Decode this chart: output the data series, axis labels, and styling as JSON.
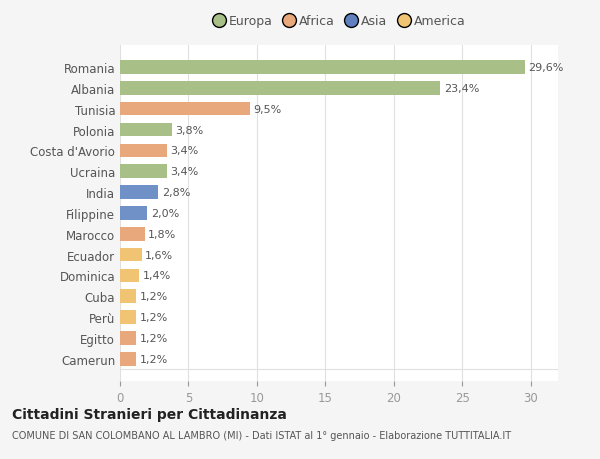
{
  "categories": [
    "Camerun",
    "Egitto",
    "Perù",
    "Cuba",
    "Dominica",
    "Ecuador",
    "Marocco",
    "Filippine",
    "India",
    "Ucraina",
    "Costa d'Avorio",
    "Polonia",
    "Tunisia",
    "Albania",
    "Romania"
  ],
  "values": [
    1.2,
    1.2,
    1.2,
    1.2,
    1.4,
    1.6,
    1.8,
    2.0,
    2.8,
    3.4,
    3.4,
    3.8,
    9.5,
    23.4,
    29.6
  ],
  "labels": [
    "1,2%",
    "1,2%",
    "1,2%",
    "1,2%",
    "1,4%",
    "1,6%",
    "1,8%",
    "2,0%",
    "2,8%",
    "3,4%",
    "3,4%",
    "3,8%",
    "9,5%",
    "23,4%",
    "29,6%"
  ],
  "colors": [
    "#e8a87c",
    "#e8a87c",
    "#f0c472",
    "#f0c472",
    "#f0c472",
    "#f0c472",
    "#e8a87c",
    "#7090c8",
    "#7090c8",
    "#a8bf88",
    "#e8a87c",
    "#a8bf88",
    "#e8a87c",
    "#a8bf88",
    "#a8bf88"
  ],
  "legend_labels": [
    "Europa",
    "Africa",
    "Asia",
    "America"
  ],
  "legend_colors": [
    "#a8bf88",
    "#e8a87c",
    "#6080c0",
    "#f0c472"
  ],
  "title": "Cittadini Stranieri per Cittadinanza",
  "subtitle": "COMUNE DI SAN COLOMBANO AL LAMBRO (MI) - Dati ISTAT al 1° gennaio - Elaborazione TUTTITALIA.IT",
  "xlim": [
    0,
    32
  ],
  "xticks": [
    0,
    5,
    10,
    15,
    20,
    25,
    30
  ],
  "bg_color": "#f5f5f5",
  "bar_bg_color": "#ffffff",
  "grid_color": "#e0e0e0",
  "label_color": "#555555",
  "tick_color": "#999999"
}
